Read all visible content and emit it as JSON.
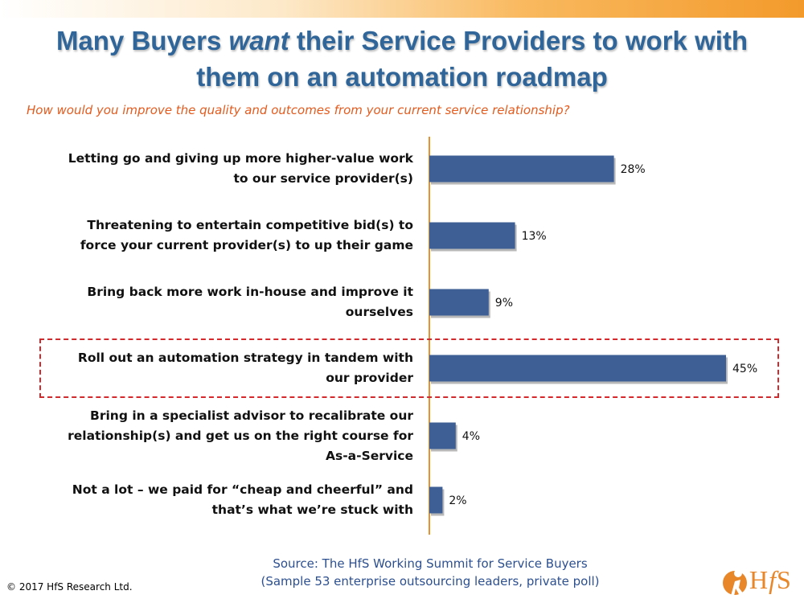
{
  "title": {
    "line1_a": "Many Buyers ",
    "line1_em": "want",
    "line1_b": " their Service Providers to work with",
    "line2": "them on an automation roadmap"
  },
  "subtitle": "How would you improve the quality and outcomes from your current service relationship?",
  "chart_data": {
    "type": "bar",
    "orientation": "horizontal",
    "categories": [
      "Letting go and giving up more higher-value work to our service provider(s)",
      "Threatening to entertain competitive bid(s) to force your current provider(s) to up their game",
      "Bring back more work in-house and improve it ourselves",
      "Roll out an automation strategy in tandem with our provider",
      "Bring in a specialist advisor to recalibrate our relationship(s) and get us on the right course for As-a-Service",
      "Not a lot – we paid for “cheap and cheerful” and that’s what we’re stuck with"
    ],
    "category_lines": [
      [
        "Letting go and giving up more higher-value work",
        "to our service provider(s)"
      ],
      [
        "Threatening to entertain competitive bid(s) to",
        "force your current provider(s) to up their game"
      ],
      [
        "Bring back more work in-house and improve it",
        "ourselves"
      ],
      [
        "Roll out an automation strategy in tandem with",
        "our provider"
      ],
      [
        "Bring in a specialist advisor to recalibrate our",
        "relationship(s) and get us on the right course for",
        "As-a-Service"
      ],
      [
        "Not a lot – we paid for “cheap and cheerful” and",
        "that’s what we’re stuck with"
      ]
    ],
    "values": [
      28,
      13,
      9,
      45,
      4,
      2
    ],
    "value_labels": [
      "28%",
      "13%",
      "9%",
      "45%",
      "4%",
      "2%"
    ],
    "unit": "%",
    "highlighted_index": 3,
    "xlim": [
      0,
      100
    ],
    "grid": false,
    "legend": "none",
    "colors": {
      "bar": "#3e5f95",
      "axis": "#e8922e",
      "highlight": "#d3282c"
    }
  },
  "source": {
    "line1": "Source:  The HfS Working Summit for Service Buyers",
    "line2": "(Sample 53 enterprise outsourcing leaders, private poll)"
  },
  "copyright": "© 2017 HfS Research Ltd.",
  "logo": {
    "text": "HfS",
    "icon": "hfs-figure-logo-icon"
  }
}
